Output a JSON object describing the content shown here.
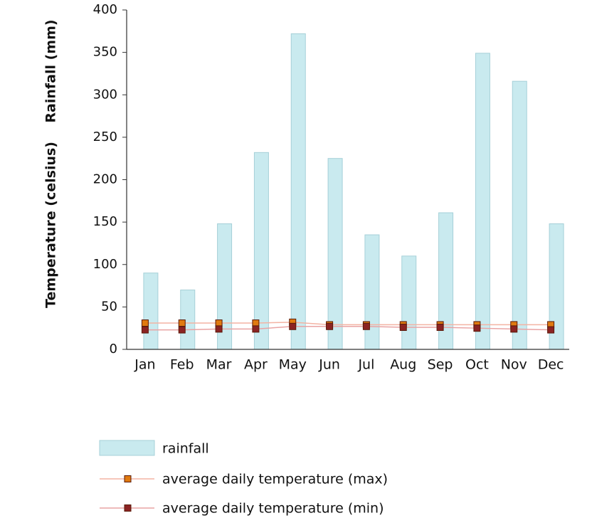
{
  "chart_data": {
    "type": "bar",
    "y_axis_labels": [
      "Rainfall (mm)",
      "Temperature (celsius)"
    ],
    "categories": [
      "Jan",
      "Feb",
      "Mar",
      "Apr",
      "May",
      "Jun",
      "Jul",
      "Aug",
      "Sep",
      "Oct",
      "Nov",
      "Dec"
    ],
    "series": [
      {
        "name": "rainfall",
        "type": "bar",
        "color": "#c9eaef",
        "values": [
          90,
          70,
          148,
          232,
          372,
          225,
          135,
          110,
          161,
          349,
          316,
          148
        ]
      },
      {
        "name": "average daily temperature (max)",
        "type": "line",
        "color": "#e07a10",
        "values": [
          31,
          31,
          31,
          31,
          32,
          29,
          29,
          29,
          29,
          29,
          29,
          29
        ]
      },
      {
        "name": "average daily temperature (min)",
        "type": "line",
        "color": "#8b2323",
        "values": [
          23,
          23,
          24,
          24,
          27,
          27,
          27,
          26,
          26,
          25,
          24,
          23
        ]
      }
    ],
    "ylim": [
      0,
      400
    ],
    "yticks": [
      0,
      50,
      100,
      150,
      200,
      250,
      300,
      350,
      400
    ]
  }
}
